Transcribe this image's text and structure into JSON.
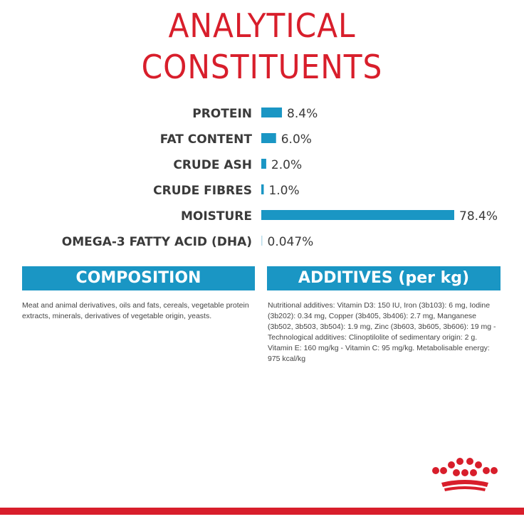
{
  "title_line1": "ANALYTICAL",
  "title_line2": "CONSTITUENTS",
  "colors": {
    "accent_red": "#d81e2b",
    "bar_blue": "#1a96c4",
    "text": "#3a3a3a"
  },
  "chart_data": {
    "type": "bar",
    "orientation": "horizontal",
    "categories": [
      "PROTEIN",
      "FAT CONTENT",
      "CRUDE ASH",
      "CRUDE FIBRES",
      "MOISTURE",
      "OMEGA-3 FATTY ACID (DHA)"
    ],
    "values": [
      8.4,
      6.0,
      2.0,
      1.0,
      78.4,
      0.047
    ],
    "value_labels": [
      "8.4%",
      "6.0%",
      "2.0%",
      "1.0%",
      "78.4%",
      "0.047%"
    ],
    "xlim": [
      0,
      78.4
    ]
  },
  "composition": {
    "heading": "COMPOSITION",
    "text": "Meat and animal derivatives, oils and fats, cereals, vegetable protein extracts, minerals, derivatives of vegetable origin, yeasts."
  },
  "additives": {
    "heading": "ADDITIVES (per kg)",
    "text": "Nutritional additives: Vitamin D3: 150 IU, Iron (3b103): 6 mg, Iodine (3b202): 0.34 mg, Copper (3b405, 3b406): 2.7 mg, Manganese (3b502, 3b503, 3b504): 1.9 mg, Zinc (3b603, 3b605, 3b606): 19 mg - Technological additives: Clinoptilolite of sedimentary origin: 2 g. Vitamin E: 160 mg/kg - Vitamin C: 95 mg/kg. Metabolisable energy: 975 kcal/kg"
  },
  "logo": {
    "icon": "crown-icon"
  }
}
